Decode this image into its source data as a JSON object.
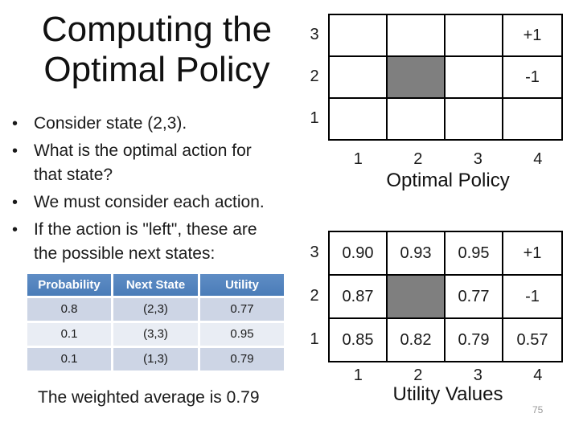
{
  "title": {
    "line1": "Computing the",
    "line2": "Optimal Policy"
  },
  "bullets": [
    "Consider state (2,3).",
    "What is the optimal action for\nthat state?",
    "We must consider each action.",
    "If the action is \"left\", these are\nthe possible next states:"
  ],
  "next_state_table": {
    "headers": [
      "Probability",
      "Next State",
      "Utility"
    ],
    "rows": [
      [
        "0.8",
        "(2,3)",
        "0.77"
      ],
      [
        "0.1",
        "(3,3)",
        "0.95"
      ],
      [
        "0.1",
        "(1,3)",
        "0.79"
      ]
    ]
  },
  "clipped_text": "The weighted average is 0.79",
  "policy_grid": {
    "caption": "Optimal Policy",
    "row_labels": [
      "3",
      "2",
      "1"
    ],
    "col_labels": [
      "1",
      "2",
      "3",
      "4"
    ],
    "cells": [
      [
        "",
        "",
        "",
        "+1"
      ],
      [
        "",
        "",
        "",
        "-1"
      ],
      [
        "",
        "",
        "",
        ""
      ]
    ],
    "gray_cells": [
      [
        1,
        1
      ]
    ]
  },
  "utility_grid": {
    "caption": "Utility Values",
    "row_labels": [
      "3",
      "2",
      "1"
    ],
    "col_labels": [
      "1",
      "2",
      "3",
      "4"
    ],
    "cells": [
      [
        "0.90",
        "0.93",
        "0.95",
        "+1"
      ],
      [
        "0.87",
        "",
        "0.77",
        "-1"
      ],
      [
        "0.85",
        "0.82",
        "0.79",
        "0.57"
      ]
    ],
    "gray_cells": [
      [
        1,
        1
      ]
    ]
  },
  "page_number": "75",
  "colors": {
    "table_header_bg": "#4f81bd",
    "table_row_dark": "#cdd5e5",
    "table_row_light": "#e9edf4",
    "obstacle_gray": "#7f7f7f",
    "page_number_color": "#9a9a9a"
  }
}
